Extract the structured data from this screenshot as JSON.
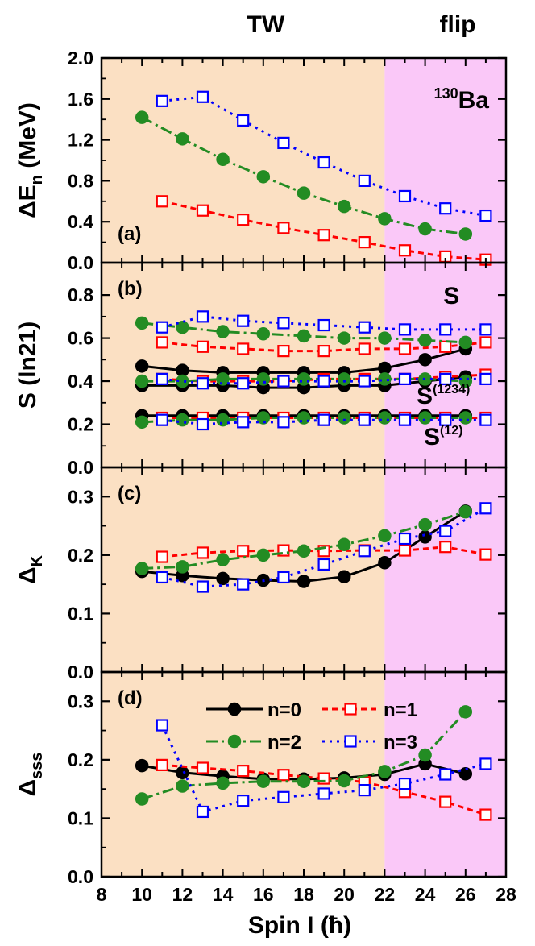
{
  "header": {
    "region_left": "TW",
    "region_right": "flip"
  },
  "colors": {
    "tw_region": "#fbe0c3",
    "flip_region": "#fac8f8",
    "n0": "#000000",
    "n1": "#ff0000",
    "n2": "#238c23",
    "n3": "#0000ff"
  },
  "chart_data": {
    "type": "line",
    "xlabel": "Spin I (ħ)",
    "xlim": [
      8,
      28
    ],
    "xticks": [
      "8",
      "10",
      "12",
      "14",
      "16",
      "18",
      "20",
      "22",
      "24",
      "26",
      "28"
    ],
    "regions": [
      {
        "label": "TW",
        "from": 8,
        "to": 22
      },
      {
        "label": "flip",
        "from": 22,
        "to": 28
      }
    ],
    "legend": [
      {
        "key": "n0",
        "label": "n=0"
      },
      {
        "key": "n1",
        "label": "n=1"
      },
      {
        "key": "n2",
        "label": "n=2"
      },
      {
        "key": "n3",
        "label": "n=3"
      }
    ],
    "panels": [
      {
        "id": "a",
        "panel_label": "(a)",
        "ylabel": "ΔEn (MeV)",
        "ylim": [
          0,
          2.0
        ],
        "yticks": [
          "0.0",
          "0.4",
          "0.8",
          "1.2",
          "1.6",
          "2.0"
        ],
        "annotations": [
          {
            "text": "130Ba",
            "x": 25.8,
            "y": 1.51
          }
        ],
        "series": [
          {
            "name": "n=1",
            "key": "n1",
            "x": [
              11,
              13,
              15,
              17,
              19,
              21,
              23,
              25,
              27
            ],
            "y": [
              0.6,
              0.51,
              0.42,
              0.34,
              0.27,
              0.2,
              0.12,
              0.06,
              0.03
            ]
          },
          {
            "name": "n=2",
            "key": "n2",
            "x": [
              10,
              12,
              14,
              16,
              18,
              20,
              22,
              24,
              26
            ],
            "y": [
              1.42,
              1.21,
              1.01,
              0.84,
              0.68,
              0.55,
              0.43,
              0.33,
              0.28
            ]
          },
          {
            "name": "n=3",
            "key": "n3",
            "x": [
              11,
              13,
              15,
              17,
              19,
              21,
              23,
              25,
              27
            ],
            "y": [
              1.58,
              1.62,
              1.39,
              1.17,
              0.98,
              0.8,
              0.65,
              0.53,
              0.46
            ]
          }
        ]
      },
      {
        "id": "b",
        "panel_label": "(b)",
        "ylabel": "S (ln21)",
        "ylim": [
          0,
          0.95
        ],
        "yticks": [
          "0.0",
          "0.2",
          "0.4",
          "0.6",
          "0.8"
        ],
        "annotations": [
          {
            "text": "S",
            "x": 25.3,
            "y": 0.76
          },
          {
            "text": "S(1234)",
            "x": 24.9,
            "y": 0.295
          },
          {
            "text": "S(12)",
            "x": 24.9,
            "y": 0.105
          }
        ],
        "series": [
          {
            "name": "n=0 S",
            "key": "n0",
            "x": [
              10,
              12,
              14,
              16,
              18,
              20,
              22,
              24,
              26
            ],
            "y": [
              0.47,
              0.45,
              0.44,
              0.44,
              0.44,
              0.44,
              0.46,
              0.5,
              0.55
            ]
          },
          {
            "name": "n=0 S(1234)",
            "key": "n0",
            "x": [
              10,
              12,
              14,
              16,
              18,
              20,
              22,
              24,
              26
            ],
            "y": [
              0.38,
              0.38,
              0.38,
              0.37,
              0.37,
              0.38,
              0.38,
              0.4,
              0.42
            ]
          },
          {
            "name": "n=0 S(12)",
            "key": "n0",
            "x": [
              10,
              12,
              14,
              16,
              18,
              20,
              22,
              24,
              26
            ],
            "y": [
              0.24,
              0.24,
              0.24,
              0.24,
              0.24,
              0.24,
              0.24,
              0.24,
              0.24
            ]
          },
          {
            "name": "n=1 S",
            "key": "n1",
            "x": [
              11,
              13,
              15,
              17,
              19,
              21,
              23,
              25,
              27
            ],
            "y": [
              0.58,
              0.56,
              0.55,
              0.54,
              0.54,
              0.55,
              0.55,
              0.56,
              0.58
            ]
          },
          {
            "name": "n=1 S(1234)",
            "key": "n1",
            "x": [
              11,
              13,
              15,
              17,
              19,
              21,
              23,
              25,
              27
            ],
            "y": [
              0.41,
              0.4,
              0.4,
              0.4,
              0.41,
              0.41,
              0.41,
              0.42,
              0.43
            ]
          },
          {
            "name": "n=1 S(12)",
            "key": "n1",
            "x": [
              11,
              13,
              15,
              17,
              19,
              21,
              23,
              25,
              27
            ],
            "y": [
              0.23,
              0.23,
              0.23,
              0.23,
              0.23,
              0.23,
              0.23,
              0.23,
              0.23
            ]
          },
          {
            "name": "n=2 S",
            "key": "n2",
            "x": [
              10,
              12,
              14,
              16,
              18,
              20,
              22,
              24,
              26
            ],
            "y": [
              0.67,
              0.65,
              0.63,
              0.62,
              0.61,
              0.6,
              0.6,
              0.59,
              0.58
            ]
          },
          {
            "name": "n=2 S(1234)",
            "key": "n2",
            "x": [
              10,
              12,
              14,
              16,
              18,
              20,
              22,
              24,
              26
            ],
            "y": [
              0.4,
              0.4,
              0.41,
              0.41,
              0.41,
              0.41,
              0.41,
              0.41,
              0.4
            ]
          },
          {
            "name": "n=2 S(12)",
            "key": "n2",
            "x": [
              10,
              12,
              14,
              16,
              18,
              20,
              22,
              24,
              26
            ],
            "y": [
              0.21,
              0.22,
              0.22,
              0.23,
              0.23,
              0.23,
              0.23,
              0.23,
              0.23
            ]
          },
          {
            "name": "n=3 S",
            "key": "n3",
            "x": [
              11,
              13,
              15,
              17,
              19,
              21,
              23,
              25,
              27
            ],
            "y": [
              0.65,
              0.7,
              0.68,
              0.67,
              0.66,
              0.65,
              0.64,
              0.64,
              0.64
            ]
          },
          {
            "name": "n=3 S(1234)",
            "key": "n3",
            "x": [
              11,
              13,
              15,
              17,
              19,
              21,
              23,
              25,
              27
            ],
            "y": [
              0.41,
              0.39,
              0.39,
              0.4,
              0.4,
              0.4,
              0.41,
              0.41,
              0.41
            ]
          },
          {
            "name": "n=3 S(12)",
            "key": "n3",
            "x": [
              11,
              13,
              15,
              17,
              19,
              21,
              23,
              25,
              27
            ],
            "y": [
              0.22,
              0.2,
              0.21,
              0.21,
              0.22,
              0.22,
              0.22,
              0.22,
              0.22
            ]
          }
        ]
      },
      {
        "id": "c",
        "panel_label": "(c)",
        "ylabel": "ΔK",
        "ylim": [
          0,
          0.35
        ],
        "yticks": [
          "0.0",
          "0.1",
          "0.2",
          "0.3"
        ],
        "annotations": [],
        "series": [
          {
            "name": "n=0",
            "key": "n0",
            "x": [
              10,
              12,
              14,
              16,
              18,
              20,
              22,
              24,
              26
            ],
            "y": [
              0.172,
              0.165,
              0.16,
              0.157,
              0.155,
              0.163,
              0.187,
              0.231,
              0.275
            ]
          },
          {
            "name": "n=1",
            "key": "n1",
            "x": [
              11,
              13,
              15,
              17,
              19,
              21,
              23,
              25,
              27
            ],
            "y": [
              0.197,
              0.204,
              0.207,
              0.208,
              0.207,
              0.208,
              0.208,
              0.214,
              0.201
            ]
          },
          {
            "name": "n=2",
            "key": "n2",
            "x": [
              10,
              12,
              14,
              16,
              18,
              20,
              22,
              24,
              26
            ],
            "y": [
              0.177,
              0.18,
              0.192,
              0.2,
              0.207,
              0.218,
              0.233,
              0.252,
              0.274
            ]
          },
          {
            "name": "n=3",
            "key": "n3",
            "x": [
              11,
              13,
              15,
              17,
              19,
              21,
              23,
              25,
              27
            ],
            "y": [
              0.162,
              0.146,
              0.15,
              0.162,
              0.184,
              0.207,
              0.228,
              0.241,
              0.28
            ]
          }
        ]
      },
      {
        "id": "d",
        "panel_label": "(d)",
        "ylabel": "Δsss",
        "ylim": [
          0,
          0.35
        ],
        "yticks": [
          "0.0",
          "0.1",
          "0.2",
          "0.3"
        ],
        "annotations": [],
        "series": [
          {
            "name": "n=0",
            "key": "n0",
            "x": [
              10,
              12,
              14,
              16,
              18,
              20,
              22,
              24,
              26
            ],
            "y": [
              0.19,
              0.178,
              0.172,
              0.167,
              0.167,
              0.169,
              0.175,
              0.193,
              0.176
            ]
          },
          {
            "name": "n=1",
            "key": "n1",
            "x": [
              11,
              13,
              15,
              17,
              19,
              21,
              23,
              25,
              27
            ],
            "y": [
              0.191,
              0.186,
              0.181,
              0.174,
              0.168,
              0.162,
              0.145,
              0.128,
              0.106
            ]
          },
          {
            "name": "n=2",
            "key": "n2",
            "x": [
              10,
              12,
              14,
              16,
              18,
              20,
              22,
              24,
              26
            ],
            "y": [
              0.133,
              0.155,
              0.16,
              0.163,
              0.163,
              0.164,
              0.18,
              0.208,
              0.282
            ]
          },
          {
            "name": "n=3",
            "key": "n3",
            "x": [
              11,
              13,
              15,
              17,
              19,
              21,
              23,
              25,
              27
            ],
            "y": [
              0.259,
              0.111,
              0.13,
              0.136,
              0.142,
              0.148,
              0.159,
              0.175,
              0.193
            ]
          }
        ]
      }
    ]
  }
}
